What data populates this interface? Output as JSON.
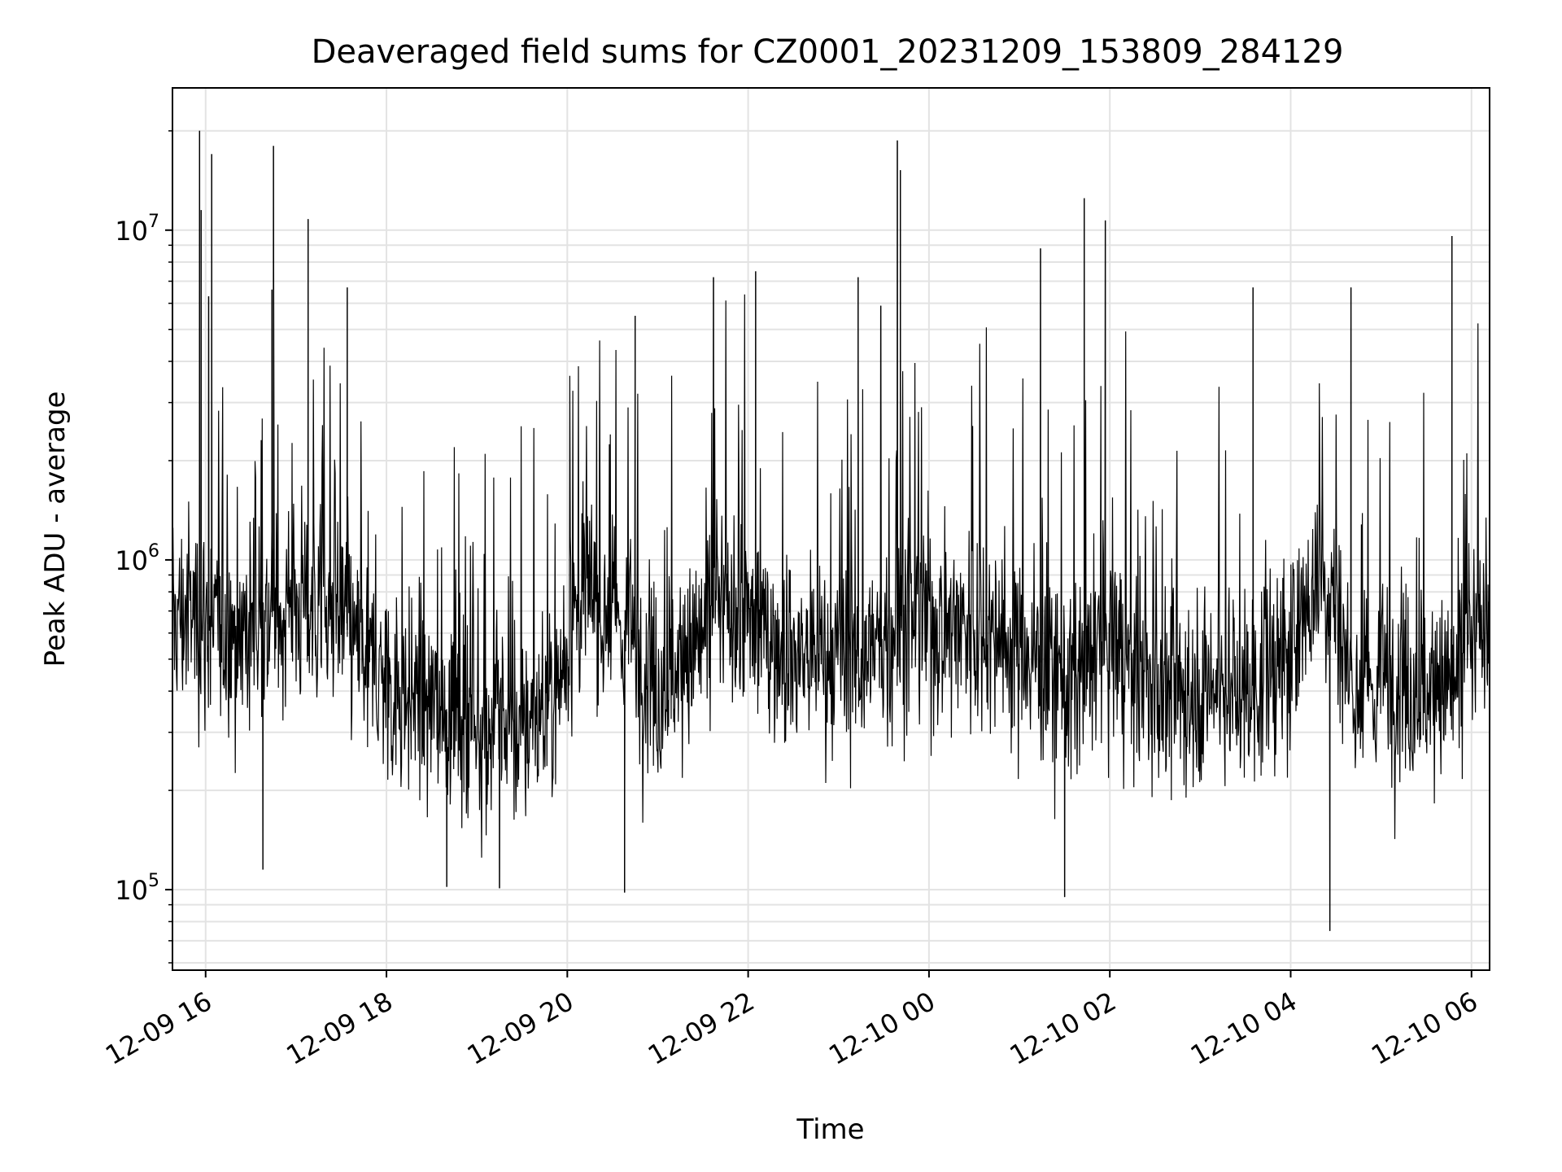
{
  "chart_data": {
    "type": "line",
    "title": "Deaveraged field sums for CZ0001_20231209_153809_284129",
    "xlabel": "Time",
    "ylabel": "Peak ADU - average",
    "yscale": "log",
    "ylim": [
      57000,
      27000000
    ],
    "xlim": [
      "2023-12-09 15:38",
      "2023-12-10 06:12"
    ],
    "grid": true,
    "legend": "none",
    "line_color": "#000000",
    "x_ticks": [
      "12-09 16",
      "12-09 18",
      "12-09 20",
      "12-09 22",
      "12-10 00",
      "12-10 02",
      "12-10 04",
      "12-10 06"
    ],
    "y_ticks": [
      {
        "value": 100000,
        "base": "10",
        "exp": "5"
      },
      {
        "value": 1000000,
        "base": "10",
        "exp": "6"
      },
      {
        "value": 10000000,
        "base": "10",
        "exp": "7"
      }
    ],
    "series": [
      {
        "x": [
          "2023-12-09 15:38",
          "2023-12-09 15:50",
          "2023-12-09 16:00",
          "2023-12-09 16:05",
          "2023-12-09 16:30",
          "2023-12-09 16:45",
          "2023-12-09 17:00",
          "2023-12-09 17:30",
          "2023-12-09 18:00",
          "2023-12-09 18:30",
          "2023-12-09 19:00",
          "2023-12-09 19:30",
          "2023-12-09 19:50",
          "2023-12-09 20:10",
          "2023-12-09 20:40",
          "2023-12-09 21:00",
          "2023-12-09 21:20",
          "2023-12-09 21:40",
          "2023-12-09 22:00",
          "2023-12-09 22:30",
          "2023-12-09 23:00",
          "2023-12-09 23:30",
          "2023-12-09 23:45",
          "2023-12-10 00:20",
          "2023-12-10 00:45",
          "2023-12-10 01:10",
          "2023-12-10 01:40",
          "2023-12-10 02:00",
          "2023-12-10 02:30",
          "2023-12-10 03:00",
          "2023-12-10 03:30",
          "2023-12-10 04:00",
          "2023-12-10 04:20",
          "2023-12-10 04:45",
          "2023-12-10 05:10",
          "2023-12-10 05:30",
          "2023-12-10 05:50",
          "2023-12-10 06:12"
        ],
        "median": [
          650000,
          700000,
          650000,
          620000,
          620000,
          700000,
          750000,
          650000,
          420000,
          360000,
          320000,
          300000,
          380000,
          800000,
          600000,
          420000,
          500000,
          700000,
          650000,
          520000,
          480000,
          550000,
          650000,
          650000,
          600000,
          500000,
          420000,
          600000,
          380000,
          420000,
          400000,
          500000,
          1000000,
          380000,
          450000,
          400000,
          420000,
          700000
        ],
        "spikes": [
          {
            "x": "2023-12-09 15:56",
            "y": 20000000
          },
          {
            "x": "2023-12-09 15:57",
            "y": 11500000
          },
          {
            "x": "2023-12-09 16:02",
            "y": 6300000
          },
          {
            "x": "2023-12-09 16:04",
            "y": 17000000
          },
          {
            "x": "2023-12-09 16:44",
            "y": 6600000
          },
          {
            "x": "2023-12-09 16:45",
            "y": 18000000
          },
          {
            "x": "2023-12-09 17:08",
            "y": 10800000
          },
          {
            "x": "2023-12-09 17:34",
            "y": 6700000
          },
          {
            "x": "2023-12-09 20:45",
            "y": 5500000
          },
          {
            "x": "2023-12-09 21:37",
            "y": 7200000
          },
          {
            "x": "2023-12-09 22:05",
            "y": 7500000
          },
          {
            "x": "2023-12-09 23:13",
            "y": 7200000
          },
          {
            "x": "2023-12-09 23:28",
            "y": 5900000
          },
          {
            "x": "2023-12-09 23:39",
            "y": 18700000
          },
          {
            "x": "2023-12-09 23:41",
            "y": 15200000
          },
          {
            "x": "2023-12-10 01:14",
            "y": 8800000
          },
          {
            "x": "2023-12-10 01:43",
            "y": 12500000
          },
          {
            "x": "2023-12-10 01:57",
            "y": 10700000
          },
          {
            "x": "2023-12-10 03:35",
            "y": 6700000
          },
          {
            "x": "2023-12-10 04:40",
            "y": 6700000
          },
          {
            "x": "2023-12-10 05:47",
            "y": 9600000
          }
        ],
        "dips": [
          {
            "x": "2023-12-09 16:38",
            "y": 115000
          },
          {
            "x": "2023-12-09 18:40",
            "y": 102000
          },
          {
            "x": "2023-12-09 19:15",
            "y": 101000
          },
          {
            "x": "2023-12-09 20:38",
            "y": 98000
          },
          {
            "x": "2023-12-10 01:30",
            "y": 95000
          },
          {
            "x": "2023-12-10 04:26",
            "y": 75000
          }
        ]
      }
    ]
  }
}
